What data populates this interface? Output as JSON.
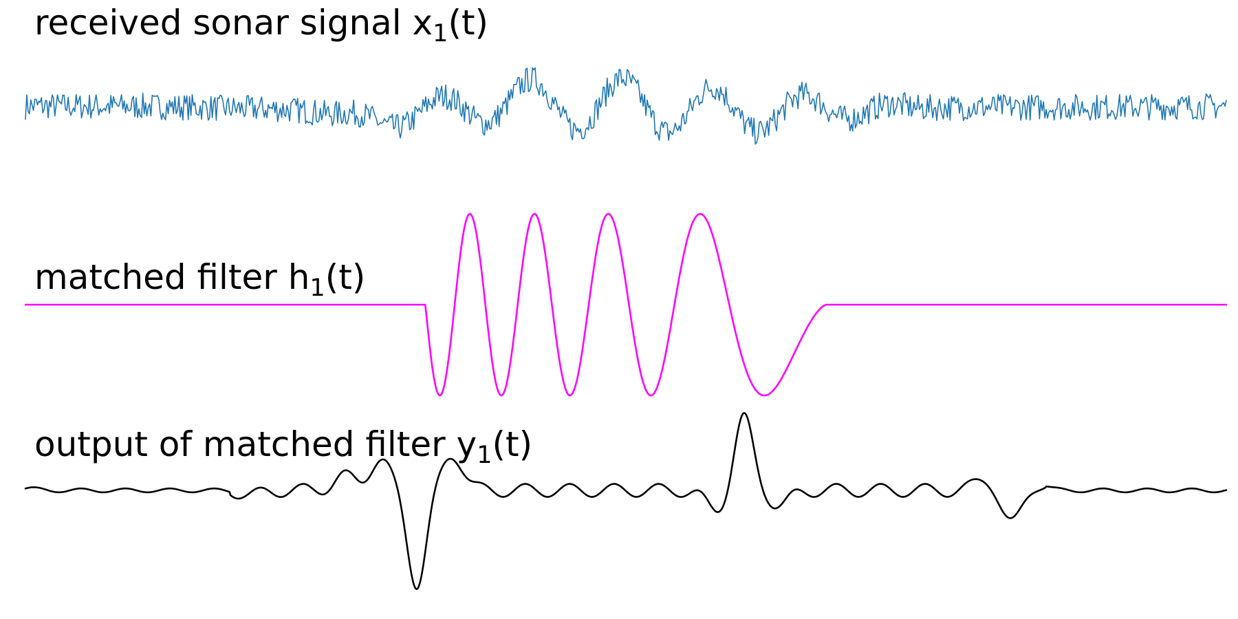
{
  "colors": {
    "received_signal": "#1f77b4",
    "matched_filter": "#ff00ff",
    "filter_output": "#000000",
    "background": "#ffffff"
  },
  "chart_data": [
    {
      "type": "line",
      "title": {
        "main": "received sonar signal x",
        "sub": "1",
        "suffix": "(t)"
      },
      "xlabel": "",
      "ylabel": "",
      "x": [
        0,
        10,
        20,
        30,
        40,
        50,
        60,
        70,
        80,
        90,
        100
      ],
      "series": [
        {
          "values": [
            0.42,
            0.38,
            0.12,
            -0.85,
            0.8,
            0.55,
            -0.2,
            0.15,
            0.3,
            0.32,
            0.38
          ]
        }
      ],
      "noise": "high-frequency noise superimposed on a low-frequency echo",
      "axis_visible": false,
      "grid": false,
      "legend": "none"
    },
    {
      "type": "line",
      "title": {
        "main": "matched filter h",
        "sub": "1",
        "suffix": "(t)"
      },
      "xlabel": "",
      "ylabel": "",
      "x": [
        0,
        33.3,
        36.0,
        39.2,
        43.3,
        48.2,
        54.1,
        60.9,
        66.7,
        100
      ],
      "series": [
        {
          "values": [
            0,
            0,
            1,
            -1,
            1,
            -1,
            1,
            -1,
            0,
            0
          ]
        }
      ],
      "description_values": "zero baseline, then 4.5-cycle chirp of decreasing frequency between x=33.3 and x=66.7, peaks at +1 and troughs at -1",
      "axis_visible": false,
      "grid": false,
      "legend": "none"
    },
    {
      "type": "line",
      "title": {
        "main": "output of matched filter y",
        "sub": "1",
        "suffix": "(t)"
      },
      "xlabel": "",
      "ylabel": "",
      "x": [
        0,
        18.9,
        26.5,
        29.5,
        32.6,
        35.6,
        57.5,
        59.8,
        62.8,
        80.1,
        82.1,
        84.1,
        100
      ],
      "series": [
        {
          "values": [
            0.02,
            -0.05,
            0.15,
            0.33,
            -1.0,
            0.38,
            -0.22,
            0.78,
            -0.16,
            0.14,
            -0.38,
            0.08,
            0.0
          ]
        }
      ],
      "description_values": "oscillating correlation output with strongest negative peak near x=32.6 and strongest positive peak near x=59.8",
      "axis_visible": false,
      "grid": false,
      "legend": "none"
    }
  ]
}
